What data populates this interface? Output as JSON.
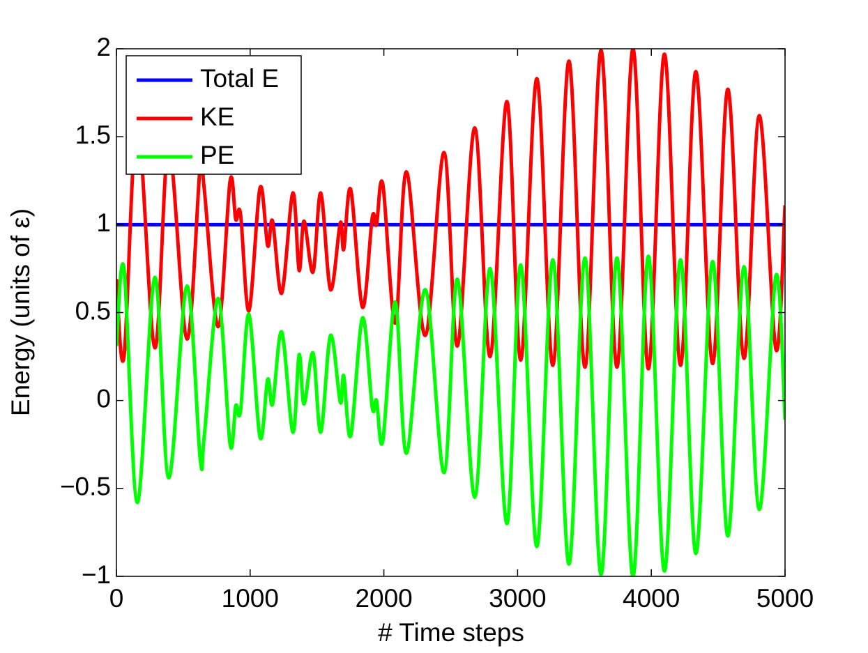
{
  "chart_data": {
    "type": "line",
    "xlabel": "# Time steps",
    "ylabel": "Energy (units of ε)",
    "x": [
      0,
      57,
      156,
      287,
      391,
      527,
      626,
      657,
      761,
      850,
      892,
      928,
      991,
      1074,
      1131,
      1168,
      1236,
      1319,
      1366,
      1403,
      1470,
      1528,
      1601,
      1674,
      1700,
      1752,
      1840,
      1913,
      1945,
      1992,
      2085,
      2169,
      2310,
      2450,
      2550,
      2680,
      2795,
      2920,
      3024,
      3144,
      3264,
      3384,
      3504,
      3624,
      3743,
      3863,
      3978,
      4098,
      4218,
      4333,
      4458,
      4572,
      4692,
      4807,
      4932,
      5000
    ],
    "series": [
      {
        "name": "Total E",
        "color": "#0000ff",
        "values": [
          1,
          1,
          1,
          1,
          1,
          1,
          1,
          1,
          1,
          1,
          1,
          1,
          1,
          1,
          1,
          1,
          1,
          1,
          1,
          1,
          1,
          1,
          1,
          1,
          1,
          1,
          1,
          1,
          1,
          1,
          1,
          1,
          1,
          1,
          1,
          1,
          1,
          1,
          1,
          1,
          1,
          1,
          1,
          1,
          1,
          1,
          1,
          1,
          1,
          1,
          1,
          1,
          1,
          1,
          1,
          1
        ]
      },
      {
        "name": "KE",
        "color": "#ff0000",
        "values": [
          0.69,
          0.25,
          1.58,
          0.3,
          1.44,
          0.35,
          1.33,
          1.2,
          0.42,
          1.25,
          1.03,
          1.06,
          0.51,
          1.21,
          0.88,
          1.02,
          0.61,
          1.18,
          0.74,
          1.02,
          0.73,
          1.18,
          0.63,
          1.01,
          0.86,
          1.2,
          0.53,
          1.04,
          1.0,
          1.23,
          0.44,
          1.3,
          0.37,
          1.41,
          0.31,
          1.55,
          0.25,
          1.7,
          0.23,
          1.83,
          0.2,
          1.93,
          0.19,
          1.99,
          0.19,
          2.0,
          0.18,
          1.97,
          0.2,
          1.87,
          0.21,
          1.77,
          0.24,
          1.62,
          0.29,
          1.11
        ]
      },
      {
        "name": "PE",
        "color": "#00ff00",
        "values": [
          0.31,
          0.75,
          -0.58,
          0.7,
          -0.44,
          0.65,
          -0.33,
          -0.2,
          0.58,
          -0.25,
          -0.03,
          -0.06,
          0.49,
          -0.21,
          0.12,
          -0.02,
          0.39,
          -0.18,
          0.26,
          -0.02,
          0.27,
          -0.18,
          0.37,
          -0.01,
          0.14,
          -0.2,
          0.47,
          -0.04,
          0.0,
          -0.23,
          0.56,
          -0.3,
          0.63,
          -0.41,
          0.69,
          -0.55,
          0.75,
          -0.7,
          0.77,
          -0.83,
          0.8,
          -0.93,
          0.81,
          -0.99,
          0.81,
          -1.0,
          0.82,
          -0.97,
          0.8,
          -0.87,
          0.79,
          -0.77,
          0.76,
          -0.62,
          0.71,
          -0.11
        ]
      }
    ],
    "xlim": [
      0,
      5000
    ],
    "xticks": [
      0,
      1000,
      2000,
      3000,
      4000,
      5000
    ],
    "ylim": [
      -1,
      2
    ],
    "yticks": [
      {
        "value": -1,
        "label": "−1"
      },
      {
        "value": -0.5,
        "label": "−0.5"
      },
      0,
      0.5,
      1,
      1.5,
      2
    ],
    "legend": "upper left"
  }
}
